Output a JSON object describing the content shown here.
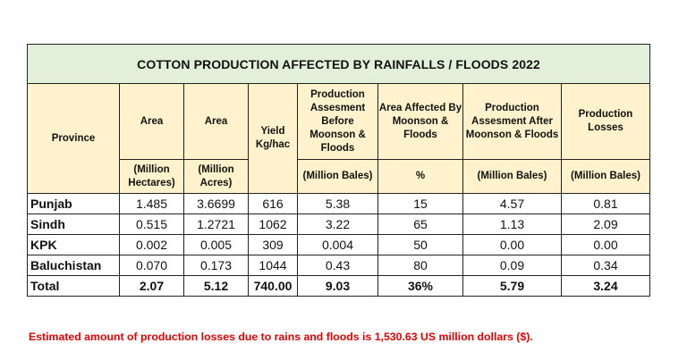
{
  "title": "COTTON PRODUCTION AFFECTED BY RAINFALLS / FLOODS 2022",
  "header": {
    "province": "Province",
    "area_ha": "Area",
    "area_ac": "Area",
    "yield": "Yield Kg/hac",
    "prod_before": "Production Assesment Before Moonson & Floods",
    "area_affected": "Area Affected By Moonson & Floods",
    "prod_after": "Production Assesment After Moonson & Floods",
    "losses": "Production Losses"
  },
  "units": {
    "area_ha": "(Million Hectares)",
    "area_ac": "(Million Acres)",
    "prod_before": "(Million Bales)",
    "area_affected": "%",
    "prod_after": "(Million Bales)",
    "losses": "(Million Bales)"
  },
  "rows": [
    {
      "province": "Punjab",
      "area_ha": "1.485",
      "area_ac": "3.6699",
      "yield": "616",
      "prod_before": "5.38",
      "area_affected": "15",
      "prod_after": "4.57",
      "losses": "0.81"
    },
    {
      "province": "Sindh",
      "area_ha": "0.515",
      "area_ac": "1.2721",
      "yield": "1062",
      "prod_before": "3.22",
      "area_affected": "65",
      "prod_after": "1.13",
      "losses": "2.09"
    },
    {
      "province": "KPK",
      "area_ha": "0.002",
      "area_ac": "0.005",
      "yield": "309",
      "prod_before": "0.004",
      "area_affected": "50",
      "prod_after": "0.00",
      "losses": "0.00"
    },
    {
      "province": "Baluchistan",
      "area_ha": "0.070",
      "area_ac": "0.173",
      "yield": "1044",
      "prod_before": "0.43",
      "area_affected": "80",
      "prod_after": "0.09",
      "losses": "0.34"
    }
  ],
  "total": {
    "province": "Total",
    "area_ha": "2.07",
    "area_ac": "5.12",
    "yield": "740.00",
    "prod_before": "9.03",
    "area_affected": "36%",
    "prod_after": "5.79",
    "losses": "3.24"
  },
  "note": "Estimated amount of production losses due to rains and floods is 1,530.63 US million dollars ($).",
  "colors": {
    "title_bg": "#e2f0d9",
    "header_bg": "#fff2cc",
    "note": "#e60000"
  }
}
